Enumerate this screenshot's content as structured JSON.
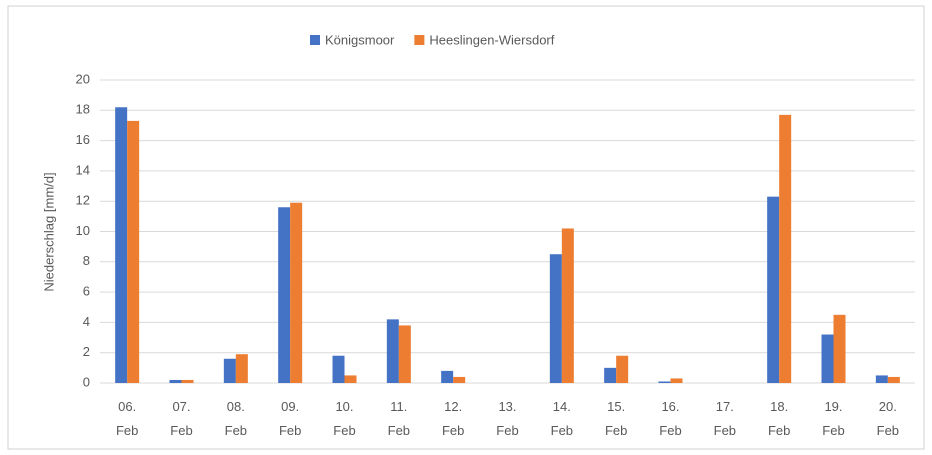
{
  "chart_data": {
    "type": "bar",
    "y_label": "Niederschlag [mm/d]",
    "categories": [
      "06. Feb",
      "07. Feb",
      "08. Feb",
      "09. Feb",
      "10. Feb",
      "11. Feb",
      "12. Feb",
      "13. Feb",
      "14. Feb",
      "15. Feb",
      "16. Feb",
      "17. Feb",
      "18. Feb",
      "19. Feb",
      "20. Feb"
    ],
    "series": [
      {
        "name": "Königsmoor",
        "color": "#4472c4",
        "values": [
          18.2,
          0.2,
          1.6,
          11.6,
          1.8,
          4.2,
          0.8,
          0,
          8.5,
          1.0,
          0.1,
          0,
          12.3,
          3.2,
          0.5
        ]
      },
      {
        "name": "Heeslingen-Wiersdorf",
        "color": "#ed7d31",
        "values": [
          17.3,
          0.2,
          1.9,
          11.9,
          0.5,
          3.8,
          0.4,
          0,
          10.2,
          1.8,
          0.3,
          0,
          17.7,
          4.5,
          0.4
        ]
      }
    ],
    "ylim": [
      0,
      20
    ],
    "yticks": [
      0,
      2,
      4,
      6,
      8,
      10,
      12,
      14,
      16,
      18,
      20
    ],
    "grid": true,
    "legend": "top"
  }
}
